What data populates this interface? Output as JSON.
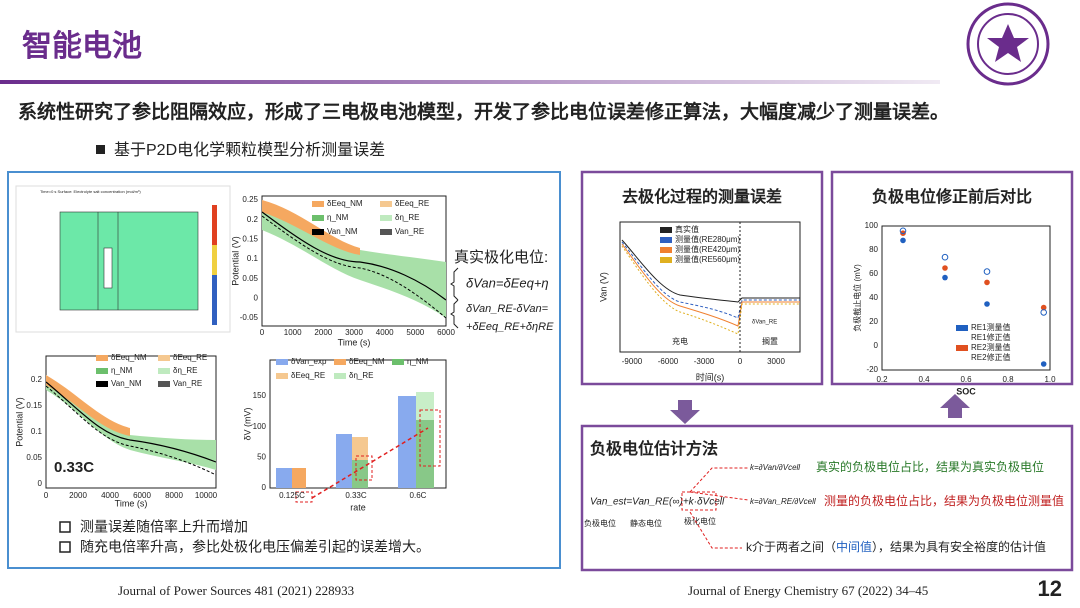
{
  "header": {
    "title": "智能电池",
    "subtitle": "系统性研究了参比阻隔效应，形成了三电极电池模型，开发了参比电位误差修正算法，大幅度减少了测量误差。",
    "bullet": "基于P2D电化学颗粒模型分析测量误差",
    "page_number": "12"
  },
  "left_panel": {
    "sim_title": "Time=0 s  Surface: Electrolyte salt concentration (mol/m³)",
    "potential_plot": {
      "ylabel": "Potential (V)",
      "xlabel": "Time (s)",
      "yticks": [
        "0.25",
        "0.2",
        "0.15",
        "0.1",
        "0.05",
        "0",
        "-0.05"
      ],
      "xticks": [
        "0",
        "1000",
        "2000",
        "3000",
        "4000",
        "5000",
        "6000"
      ],
      "legend": [
        "δEeq_NM",
        "δEeq_RE",
        "η_NM",
        "δη_RE",
        "Van_NM",
        "Van_RE"
      ]
    },
    "equation": {
      "heading": "真实极化电位:",
      "line1": "δVan=δEeq+η",
      "line2": "δVan_RE-δVan=",
      "line3": "+δEeq_RE+δηRE"
    },
    "potential_plot_033": {
      "ylabel": "Potential (V)",
      "xlabel": "Time (s)",
      "yticks": [
        "0.2",
        "0.15",
        "0.1",
        "0.05",
        "0"
      ],
      "xticks": [
        "0",
        "2000",
        "4000",
        "6000",
        "8000",
        "10000"
      ],
      "legend": [
        "δEeq_NM",
        "δEeq_RE",
        "η_NM",
        "δη_RE",
        "Van_NM",
        "Van_RE"
      ],
      "rate_label": "0.33C"
    },
    "bar_plot": {
      "ylabel": "δV (mV)",
      "xlabel": "rate",
      "yticks": [
        "0",
        "50",
        "100",
        "150"
      ],
      "categories": [
        "0.125C",
        "0.33C",
        "0.6C"
      ],
      "legend": [
        "δVan_exp",
        "δEeq_NM",
        "η_NM",
        "δEeq_RE",
        "δη_RE"
      ]
    },
    "notes": [
      "测量误差随倍率上升而增加",
      "随充电倍率升高，参比处极化电压偏差引起的误差增大。"
    ],
    "reference": "Journal of Power Sources 481 (2021) 228933"
  },
  "depolarization": {
    "title": "去极化过程的测量误差",
    "legend": [
      "真实值",
      "测量值(RE280μm)",
      "测量值(RE420μm)",
      "测量值(RE560μm)"
    ],
    "ylabel": "Van (V)",
    "xlabel": "时间(s)",
    "xticks": [
      "-9000",
      "-6000",
      "-3000",
      "0",
      "3000"
    ],
    "regions": [
      "充电",
      "搁置"
    ],
    "annotation": "δVan_RE"
  },
  "correction": {
    "title": "负极电位修正前后对比",
    "ylabel": "负极截止电位 (mV)",
    "xlabel": "SOC",
    "yticks": [
      "100",
      "80",
      "60",
      "40",
      "20",
      "0",
      "-20"
    ],
    "xticks": [
      "0.2",
      "0.4",
      "0.6",
      "0.8",
      "1.0"
    ],
    "legend": [
      "RE1测量值",
      "RE1修正值",
      "RE2测量值",
      "RE2修正值"
    ]
  },
  "estimation": {
    "title": "负极电位估计方法",
    "equation": "Van_est=Van_RE(∞)+k·δVcell",
    "labels": [
      "负极电位",
      "静态电位",
      "极化电位"
    ],
    "k_true": "k=∂Van/∂Vcell",
    "k_meas": "k=∂Van_RE/∂Vcell",
    "desc_true": "真实的负极电位占比，结果为真实负极电位",
    "desc_meas": "测量的负极电位占比，结果为负极电位测量值",
    "desc_mid_1": "k介于两者之间（",
    "desc_mid_2": "中间值",
    "desc_mid_3": "），结果为具有安全裕度的估计值"
  },
  "reference2": "Journal of Energy Chemistry 67 (2022) 34–45"
}
